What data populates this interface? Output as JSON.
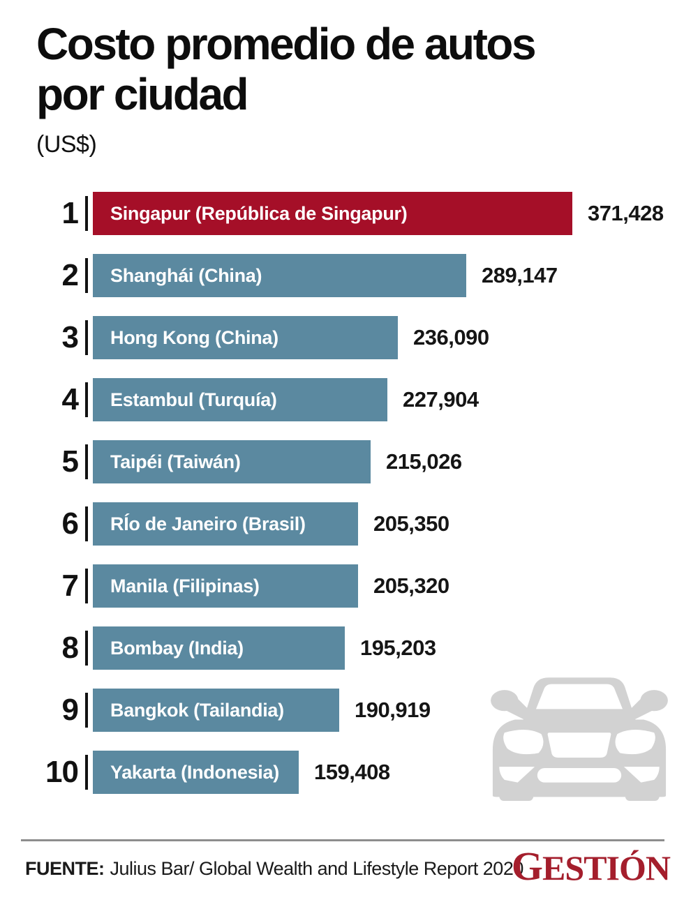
{
  "header": {
    "title_line1": "Costo promedio de autos",
    "title_line2": "por ciudad",
    "subtitle": "(US$)"
  },
  "chart_data": {
    "type": "bar",
    "orientation": "horizontal",
    "title": "Costo promedio de autos por ciudad",
    "unit": "US$",
    "xlim": [
      0,
      371428
    ],
    "grid": false,
    "value_labels": "outside-end",
    "bar_color_top": "#a50f28",
    "bar_color_default": "#5b89a0",
    "bars": [
      {
        "rank": "1",
        "label": "Singapur (República de Singapur)",
        "value": 371428,
        "value_display": "371,428",
        "color": "#a50f28"
      },
      {
        "rank": "2",
        "label": "Shanghái (China)",
        "value": 289147,
        "value_display": "289,147",
        "color": "#5b89a0"
      },
      {
        "rank": "3",
        "label": "Hong Kong (China)",
        "value": 236090,
        "value_display": "236,090",
        "color": "#5b89a0"
      },
      {
        "rank": "4",
        "label": "Estambul (Turquía)",
        "value": 227904,
        "value_display": "227,904",
        "color": "#5b89a0"
      },
      {
        "rank": "5",
        "label": "Taipéi (Taiwán)",
        "value": 215026,
        "value_display": "215,026",
        "color": "#5b89a0"
      },
      {
        "rank": "6",
        "label": "RÍo de Janeiro (Brasil)",
        "value": 205350,
        "value_display": "205,350",
        "color": "#5b89a0"
      },
      {
        "rank": "7",
        "label": "Manila (Filipinas)",
        "value": 205320,
        "value_display": "205,320",
        "color": "#5b89a0"
      },
      {
        "rank": "8",
        "label": "Bombay (India)",
        "value": 195203,
        "value_display": "195,203",
        "color": "#5b89a0"
      },
      {
        "rank": "9",
        "label": "Bangkok (Tailandia)",
        "value": 190919,
        "value_display": "190,919",
        "color": "#5b89a0"
      },
      {
        "rank": "10",
        "label": "Yakarta (Indonesia)",
        "value": 159408,
        "value_display": "159,408",
        "color": "#5b89a0"
      }
    ]
  },
  "icons": {
    "car_icon": "car-front-silhouette",
    "car_icon_color": "#d2d2d2"
  },
  "footer": {
    "source_label": "FUENTE:",
    "source_text": "Julius Bar/ Global Wealth and Lifestyle Report 2020",
    "logo_text": "GESTIÓN",
    "logo_color": "#a41e2c"
  }
}
